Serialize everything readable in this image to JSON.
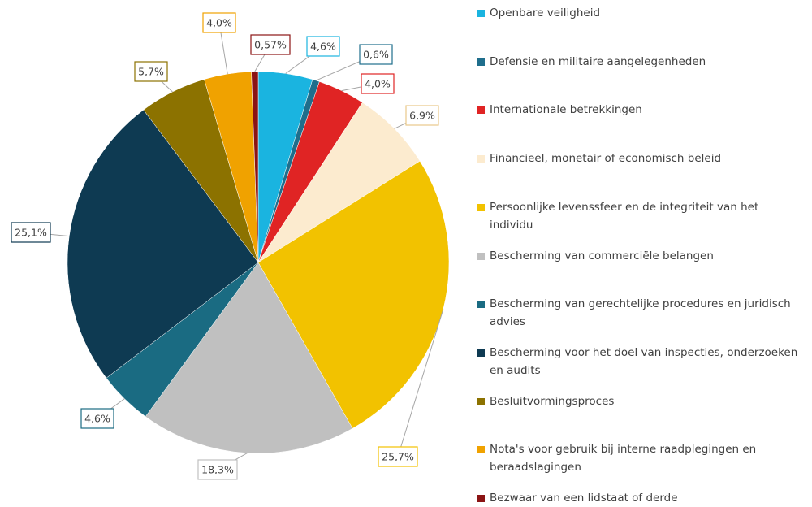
{
  "chart_data": {
    "type": "pie",
    "categories": [
      "Openbare veiligheid",
      "Defensie en militaire aangelegenheden",
      "Internationale betrekkingen",
      "Financieel, monetair of economisch beleid",
      "Persoonlijke levenssfeer en de integriteit van het individu",
      "Bescherming van commerciële belangen",
      "Bescherming van gerechtelijke procedures en juridisch advies",
      "Bescherming voor het doel van inspecties, onderzoeken en audits",
      "Besluitvormingsproces",
      "Nota's voor gebruik bij interne raadplegingen en beraadslagingen",
      "Bezwaar van een lidstaat of derde"
    ],
    "values": [
      4.6,
      0.6,
      4.0,
      6.9,
      25.7,
      18.3,
      4.6,
      25.1,
      5.7,
      4.0,
      0.57
    ],
    "value_labels": [
      "4,6%",
      "0,6%",
      "4,0%",
      "6,9%",
      "25,7%",
      "18,3%",
      "4,6%",
      "25,1%",
      "5,7%",
      "4,0%",
      "0,57%"
    ],
    "colors": [
      "#1ab4e0",
      "#1f6e8c",
      "#e02424",
      "#fcebcf",
      "#f2c200",
      "#c0c0c0",
      "#1a6b82",
      "#0e3a52",
      "#8c7200",
      "#f0a200",
      "#8b1414"
    ],
    "legend": "right"
  }
}
